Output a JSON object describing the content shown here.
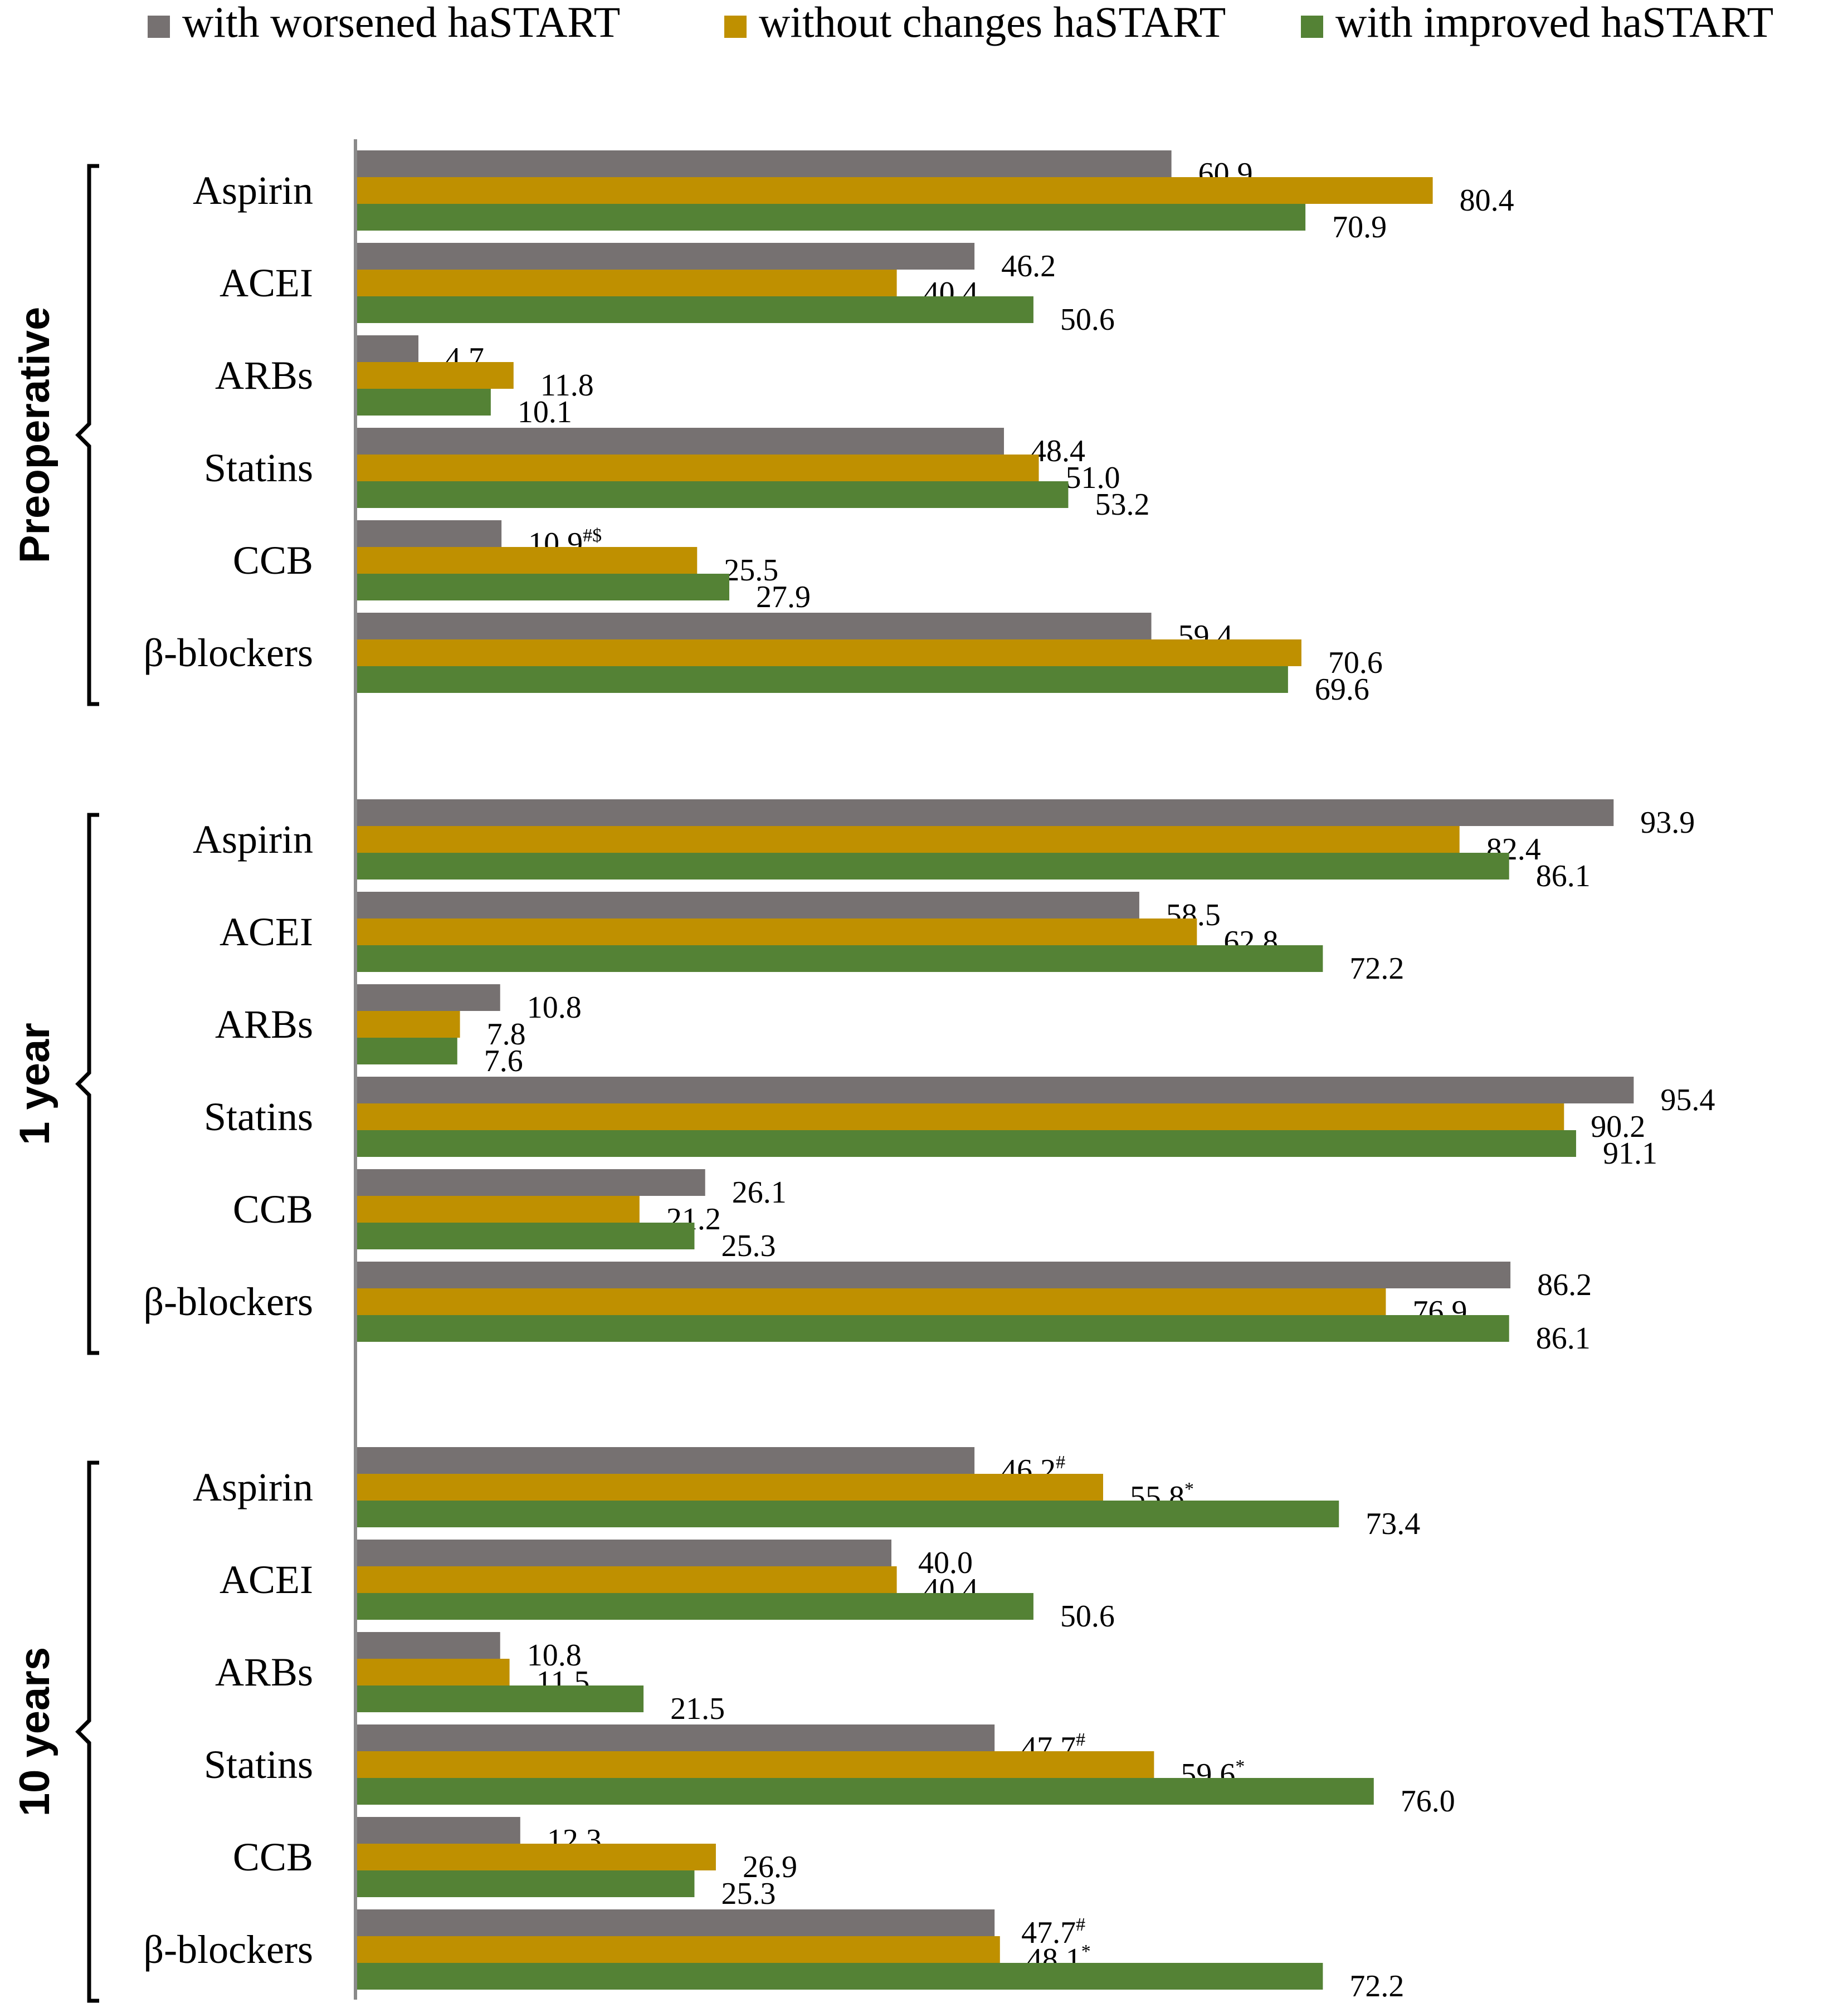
{
  "chart_data": {
    "type": "bar",
    "orientation": "horizontal",
    "title": "",
    "xlabel": "",
    "ylabel": "",
    "xlim": [
      0,
      100
    ],
    "grid": false,
    "legend_position": "top",
    "series": [
      {
        "name": "with worsened haSTART",
        "color": "#767171"
      },
      {
        "name": "without changes haSTART",
        "color": "#bf9000"
      },
      {
        "name": "with improved haSTART",
        "color": "#548235"
      }
    ],
    "groups": [
      {
        "label": "Preoperative",
        "categories": [
          {
            "name": "Aspirin",
            "values": [
              60.9,
              80.4,
              70.9
            ],
            "labels": [
              "60.9",
              "80.4",
              "70.9"
            ],
            "marks": [
              "",
              "",
              ""
            ]
          },
          {
            "name": "ACEI",
            "values": [
              46.2,
              40.4,
              50.6
            ],
            "labels": [
              "46.2",
              "40.4",
              "50.6"
            ],
            "marks": [
              "",
              "",
              ""
            ]
          },
          {
            "name": "ARBs",
            "values": [
              4.7,
              11.8,
              10.1
            ],
            "labels": [
              "4.7",
              "11.8",
              "10.1"
            ],
            "marks": [
              "",
              "",
              ""
            ]
          },
          {
            "name": "Statins",
            "values": [
              48.4,
              51.0,
              53.2
            ],
            "labels": [
              "48.4",
              "51.0",
              "53.2"
            ],
            "marks": [
              "",
              "",
              ""
            ]
          },
          {
            "name": "CCB",
            "values": [
              10.9,
              25.5,
              27.9
            ],
            "labels": [
              "10.9",
              "25.5",
              "27.9"
            ],
            "marks": [
              "#$",
              "",
              ""
            ]
          },
          {
            "name": "β-blockers",
            "values": [
              59.4,
              70.6,
              69.6
            ],
            "labels": [
              "59.4",
              "70.6",
              "69.6"
            ],
            "marks": [
              "",
              "",
              ""
            ]
          }
        ]
      },
      {
        "label": "1 year",
        "categories": [
          {
            "name": "Aspirin",
            "values": [
              93.9,
              82.4,
              86.1
            ],
            "labels": [
              "93.9",
              "82.4",
              "86.1"
            ],
            "marks": [
              "",
              "",
              ""
            ]
          },
          {
            "name": "ACEI",
            "values": [
              58.5,
              62.8,
              72.2
            ],
            "labels": [
              "58.5",
              "62.8",
              "72.2"
            ],
            "marks": [
              "",
              "",
              ""
            ]
          },
          {
            "name": "ARBs",
            "values": [
              10.8,
              7.8,
              7.6
            ],
            "labels": [
              "10.8",
              "7.8",
              "7.6"
            ],
            "marks": [
              "",
              "",
              ""
            ]
          },
          {
            "name": "Statins",
            "values": [
              95.4,
              90.2,
              91.1
            ],
            "labels": [
              "95.4",
              "90.2",
              "91.1"
            ],
            "marks": [
              "",
              "",
              ""
            ]
          },
          {
            "name": "CCB",
            "values": [
              26.1,
              21.2,
              25.3
            ],
            "labels": [
              "26.1",
              "21.2",
              "25.3"
            ],
            "marks": [
              "",
              "",
              ""
            ]
          },
          {
            "name": "β-blockers",
            "values": [
              86.2,
              76.9,
              86.1
            ],
            "labels": [
              "86.2",
              "76.9",
              "86.1"
            ],
            "marks": [
              "",
              "",
              ""
            ]
          }
        ]
      },
      {
        "label": "10 years",
        "categories": [
          {
            "name": "Aspirin",
            "values": [
              46.2,
              55.8,
              73.4
            ],
            "labels": [
              "46.2",
              "55.8",
              "73.4"
            ],
            "marks": [
              "#",
              "*",
              ""
            ]
          },
          {
            "name": "ACEI",
            "values": [
              40.0,
              40.4,
              50.6
            ],
            "labels": [
              "40.0",
              "40.4",
              "50.6"
            ],
            "marks": [
              "",
              "",
              ""
            ]
          },
          {
            "name": "ARBs",
            "values": [
              10.8,
              11.5,
              21.5
            ],
            "labels": [
              "10.8",
              "11.5",
              "21.5"
            ],
            "marks": [
              "",
              "",
              ""
            ]
          },
          {
            "name": "Statins",
            "values": [
              47.7,
              59.6,
              76.0
            ],
            "labels": [
              "47.7",
              "59.6",
              "76.0"
            ],
            "marks": [
              "#",
              "*",
              ""
            ]
          },
          {
            "name": "CCB",
            "values": [
              12.3,
              26.9,
              25.3
            ],
            "labels": [
              "12.3",
              "26.9",
              "25.3"
            ],
            "marks": [
              "",
              "",
              ""
            ]
          },
          {
            "name": "β-blockers",
            "values": [
              47.7,
              48.1,
              72.2
            ],
            "labels": [
              "47.7",
              "48.1",
              "72.2"
            ],
            "marks": [
              "#",
              "*",
              ""
            ]
          }
        ]
      }
    ]
  }
}
